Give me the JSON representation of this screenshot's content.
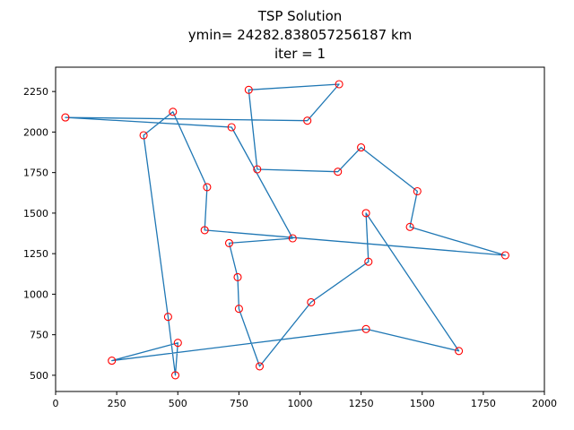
{
  "chart_data": {
    "type": "line",
    "title": "TSP Solution",
    "subtitle": "ymin= 24282.838057256187 km",
    "annotation": "iter = 1",
    "units": "km",
    "xlabel": "",
    "ylabel": "",
    "grid": false,
    "legend": "none",
    "xlim": [
      0,
      2000
    ],
    "ylim": [
      400,
      2400
    ],
    "xticks": [
      0,
      250,
      500,
      750,
      1000,
      1250,
      1500,
      1750,
      2000
    ],
    "yticks": [
      500,
      750,
      1000,
      1250,
      1500,
      1750,
      2000,
      2250
    ],
    "xtick_labels": [
      "0",
      "250",
      "500",
      "750",
      "1000",
      "1250",
      "1500",
      "1750",
      "2000"
    ],
    "ytick_labels": [
      "500",
      "750",
      "1000",
      "1250",
      "1500",
      "1750",
      "2000",
      "2250"
    ],
    "line_color": "#1f77b4",
    "line_width": 1.3,
    "marker": "open-circle",
    "marker_color": "#ff0000",
    "marker_radius": 4,
    "axes_edge_color": "#000000",
    "points": [
      [
        40,
        2090
      ],
      [
        230,
        590
      ],
      [
        360,
        1980
      ],
      [
        460,
        860
      ],
      [
        480,
        2125
      ],
      [
        490,
        500
      ],
      [
        500,
        700
      ],
      [
        610,
        1395
      ],
      [
        620,
        1660
      ],
      [
        720,
        2030
      ],
      [
        710,
        1315
      ],
      [
        745,
        1105
      ],
      [
        750,
        910
      ],
      [
        790,
        2260
      ],
      [
        825,
        1770
      ],
      [
        835,
        555
      ],
      [
        970,
        1345
      ],
      [
        1030,
        2070
      ],
      [
        1045,
        950
      ],
      [
        1160,
        2295
      ],
      [
        1155,
        1755
      ],
      [
        1250,
        1905
      ],
      [
        1270,
        1500
      ],
      [
        1280,
        1200
      ],
      [
        1270,
        785
      ],
      [
        1450,
        1415
      ],
      [
        1480,
        1635
      ],
      [
        1650,
        650
      ],
      [
        1840,
        1240
      ]
    ],
    "tour": [
      0,
      17,
      19,
      13,
      14,
      20,
      21,
      26,
      25,
      28,
      7,
      8,
      4,
      2,
      3,
      5,
      6,
      1,
      24,
      27,
      22,
      23,
      18,
      15,
      12,
      11,
      10,
      16,
      9
    ],
    "closed": true
  }
}
